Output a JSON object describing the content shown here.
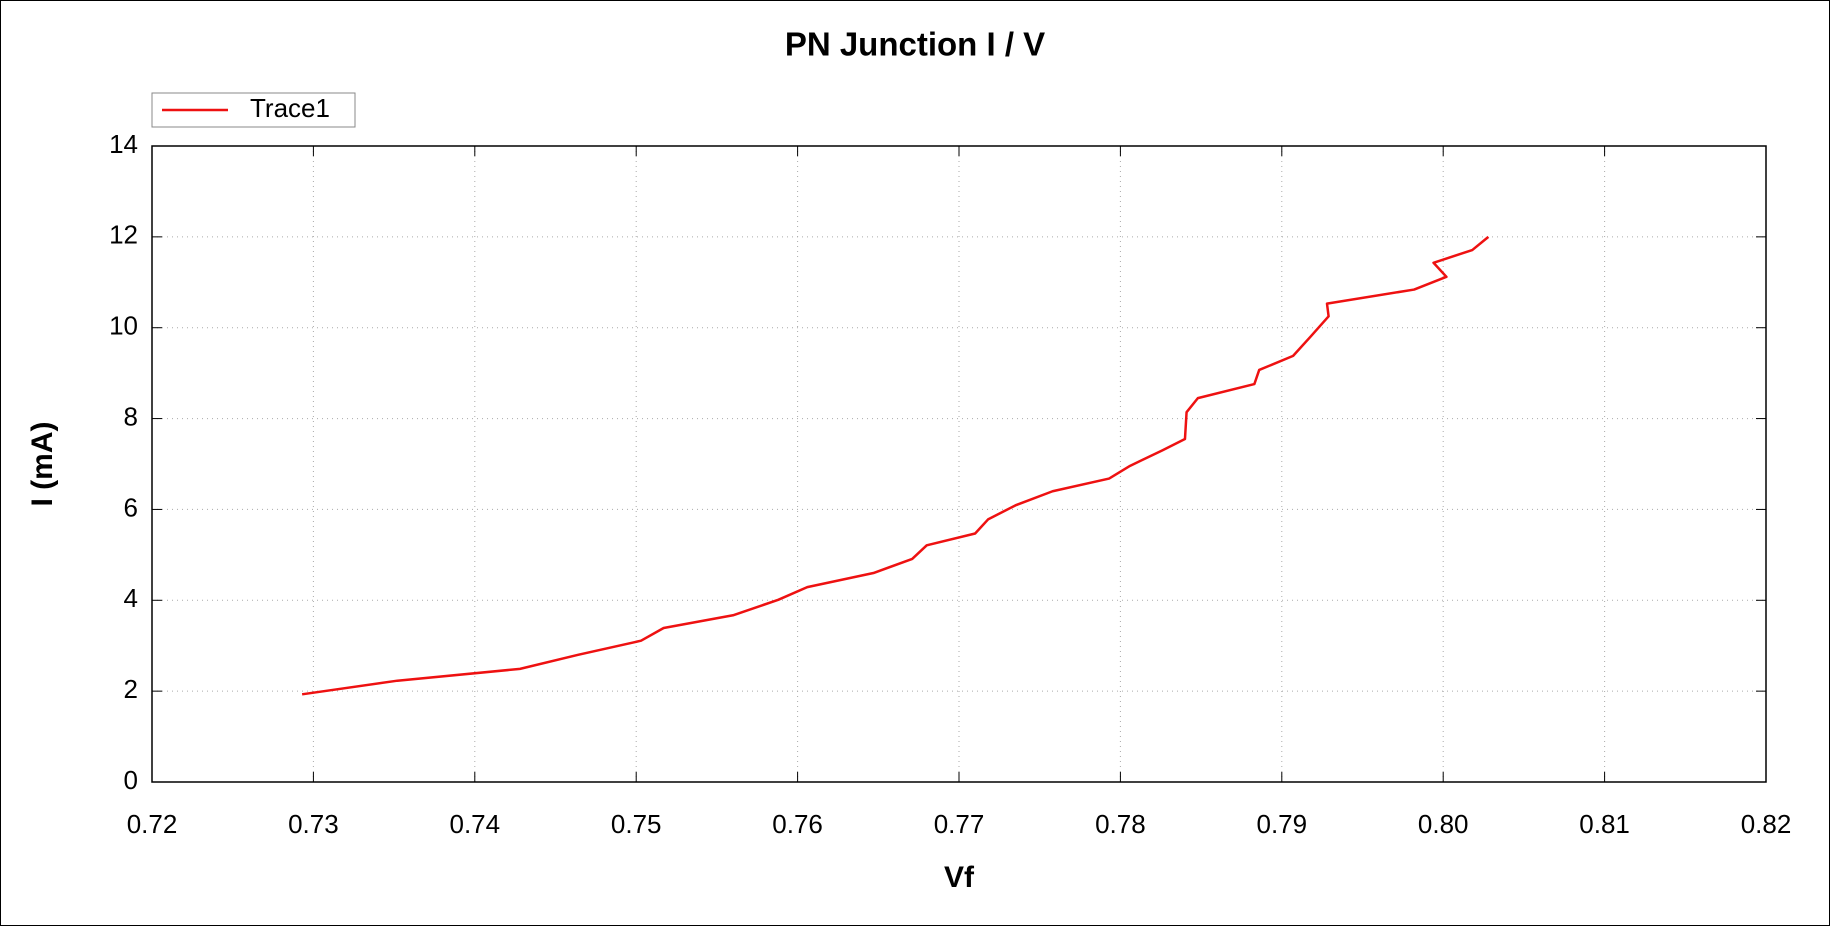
{
  "chart_data": {
    "type": "line",
    "title": "PN Junction I / V",
    "xlabel": "Vf",
    "ylabel": "I (mA)",
    "x": [
      0.7293,
      0.7352,
      0.7428,
      0.7464,
      0.7503,
      0.7517,
      0.756,
      0.7588,
      0.7606,
      0.7647,
      0.7671,
      0.768,
      0.771,
      0.7718,
      0.7735,
      0.7758,
      0.7793,
      0.7806,
      0.7826,
      0.784,
      0.7841,
      0.7848,
      0.7883,
      0.7886,
      0.7907,
      0.7918,
      0.7929,
      0.7928,
      0.7982,
      0.8002,
      0.7994,
      0.8018,
      0.8028
    ],
    "series": [
      {
        "name": "Trace1",
        "color": "#ee1111",
        "values": [
          1.93,
          2.23,
          2.49,
          2.8,
          3.11,
          3.39,
          3.67,
          4.01,
          4.29,
          4.6,
          4.91,
          5.21,
          5.47,
          5.78,
          6.09,
          6.4,
          6.68,
          6.96,
          7.3,
          7.55,
          8.14,
          8.45,
          8.76,
          9.07,
          9.38,
          9.81,
          10.25,
          10.53,
          10.84,
          11.12,
          11.43,
          11.71,
          12.0
        ]
      }
    ],
    "xlim": [
      0.72,
      0.82
    ],
    "xticks": [
      0.72,
      0.73,
      0.74,
      0.75,
      0.76,
      0.77,
      0.78,
      0.79,
      {
        "value": 0.8,
        "label": "0.80"
      },
      0.81,
      0.82
    ],
    "ylim": [
      0,
      14
    ],
    "yticks": [
      0,
      2,
      4,
      6,
      8,
      10,
      12,
      14
    ],
    "grid": true,
    "legend": "upper left"
  }
}
